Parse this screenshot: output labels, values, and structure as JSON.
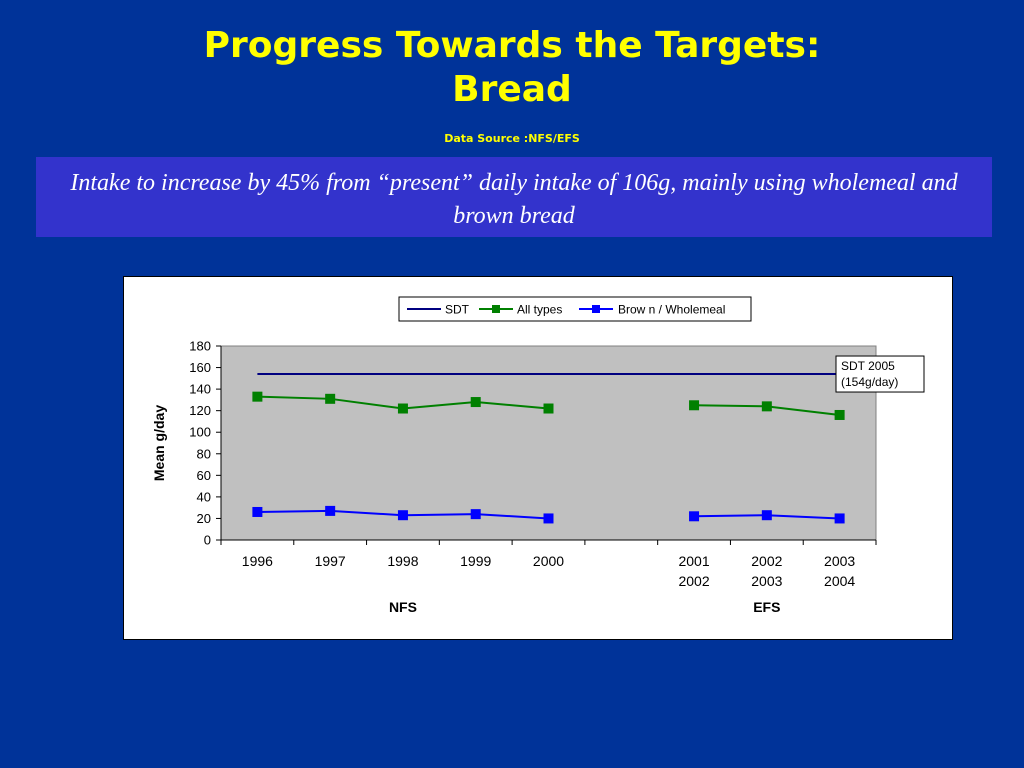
{
  "slide": {
    "title_line1": "Progress Towards the Targets:",
    "title_line2": "Bread",
    "source": "Data Source :NFS/EFS",
    "callout": "Intake to increase by 45% from “present” daily intake of 106g, mainly using wholemeal and brown bread"
  },
  "colors": {
    "background": "#003399",
    "title": "#ffff00",
    "callout_bg": "#3333cc",
    "plot_bg": "#c0c0c0",
    "sdt": "#000080",
    "all_types": "#008000",
    "brown_wholemeal": "#0000ff"
  },
  "chart_data": {
    "type": "line",
    "categories": [
      "1996",
      "1997",
      "1998",
      "1999",
      "2000",
      "",
      "2001 2002",
      "2002 2003",
      "2003 2004"
    ],
    "category_lines": [
      [
        "1996"
      ],
      [
        "1997"
      ],
      [
        "1998"
      ],
      [
        "1999"
      ],
      [
        "2000"
      ],
      [],
      [
        "2001",
        "2002"
      ],
      [
        "2002",
        "2003"
      ],
      [
        "2003",
        "2004"
      ]
    ],
    "groups": [
      {
        "label": "NFS",
        "categories": [
          "1996",
          "1997",
          "1998",
          "1999",
          "2000"
        ]
      },
      {
        "label": "EFS",
        "categories": [
          "2001 2002",
          "2002 2003",
          "2003 2004"
        ]
      }
    ],
    "ylabel": "Mean g/day",
    "ylim": [
      0,
      180
    ],
    "yticks": [
      0,
      20,
      40,
      60,
      80,
      100,
      120,
      140,
      160,
      180
    ],
    "grid": false,
    "legend_position": "top",
    "series": [
      {
        "name": "SDT",
        "color": "#000080",
        "marker": "none",
        "line_segment": [
          154,
          154
        ],
        "values": [
          154,
          154,
          154,
          154,
          154,
          154,
          154,
          154,
          154
        ]
      },
      {
        "name": "All types",
        "color": "#008000",
        "marker": "square",
        "values": [
          133,
          131,
          122,
          128,
          122,
          null,
          125,
          124,
          116
        ]
      },
      {
        "name": "Brow n / Wholemeal",
        "color": "#0000ff",
        "marker": "square",
        "values": [
          26,
          27,
          23,
          24,
          20,
          null,
          22,
          23,
          20
        ]
      }
    ],
    "annotation": {
      "line1": "SDT 2005",
      "line2": "(154g/day)"
    }
  }
}
